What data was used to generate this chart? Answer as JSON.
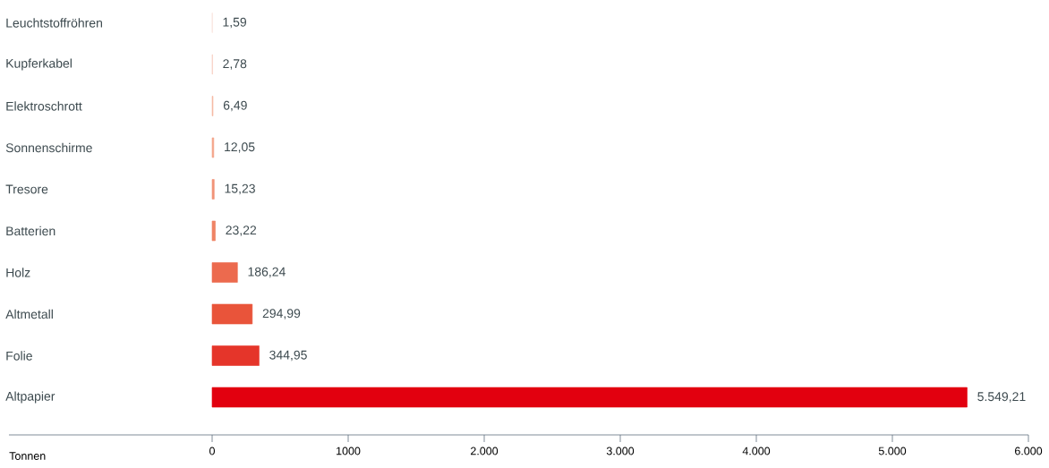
{
  "chart_data": {
    "type": "bar",
    "orientation": "horizontal",
    "xlabel": "Tonnen",
    "categories": [
      "Leuchtstoffröhren",
      "Kupferkabel",
      "Elektroschrott",
      "Sonnenschirme",
      "Tresore",
      "Batterien",
      "Holz",
      "Altmetall",
      "Folie",
      "Altpapier"
    ],
    "values": [
      1.59,
      2.78,
      6.49,
      12.05,
      15.23,
      23.22,
      186.24,
      294.99,
      344.95,
      5549.21
    ],
    "value_labels": [
      "1,59",
      "2,78",
      "6,49",
      "12,05",
      "15,23",
      "23,22",
      "186,24",
      "294,99",
      "344,95",
      "5.549,21"
    ],
    "colors": [
      "#f9e0d8",
      "#f6cdbf",
      "#f5bba5",
      "#f4a58b",
      "#f19478",
      "#ef8465",
      "#ec6a4e",
      "#e9543a",
      "#e5352a",
      "#e2000f"
    ],
    "xlim": [
      0,
      6000
    ],
    "xticks": [
      {
        "value": 0,
        "label": "0"
      },
      {
        "value": 1000,
        "label": "1000"
      },
      {
        "value": 2000,
        "label": "2.000"
      },
      {
        "value": 3000,
        "label": "3.000"
      },
      {
        "value": 4000,
        "label": "4.000"
      },
      {
        "value": 5000,
        "label": "5.000"
      },
      {
        "value": 6000,
        "label": "6.000"
      }
    ]
  }
}
